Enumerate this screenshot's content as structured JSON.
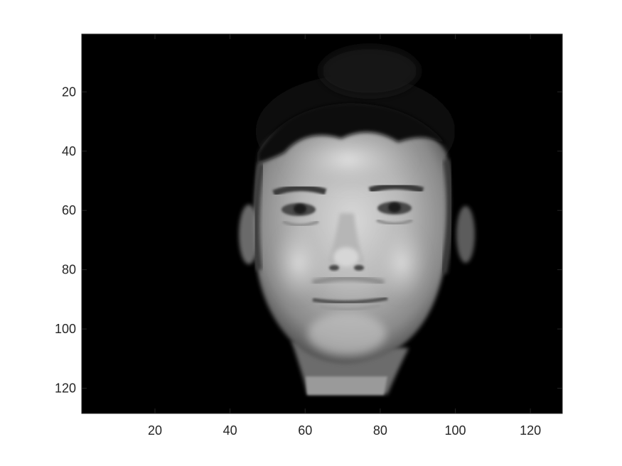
{
  "figure": {
    "type": "image-display",
    "colormap": "gray",
    "image_description_name": "grayscale-face-image"
  },
  "chart_data": {
    "type": "heatmap",
    "title": "",
    "xlabel": "",
    "ylabel": "",
    "xlim": [
      0.5,
      128.5
    ],
    "ylim": [
      0.5,
      128.5
    ],
    "y_reversed": true,
    "x_ticks": [
      20,
      40,
      60,
      80,
      100,
      120
    ],
    "x_tick_labels": [
      "20",
      "40",
      "60",
      "80",
      "100",
      "120"
    ],
    "y_ticks": [
      20,
      40,
      60,
      80,
      100,
      120
    ],
    "y_tick_labels": [
      "20",
      "40",
      "60",
      "80",
      "100",
      "120"
    ]
  },
  "colors": {
    "background": "#ffffff",
    "axes_background": "#000000",
    "axis_line": "#262626",
    "tick_text": "#262626"
  }
}
